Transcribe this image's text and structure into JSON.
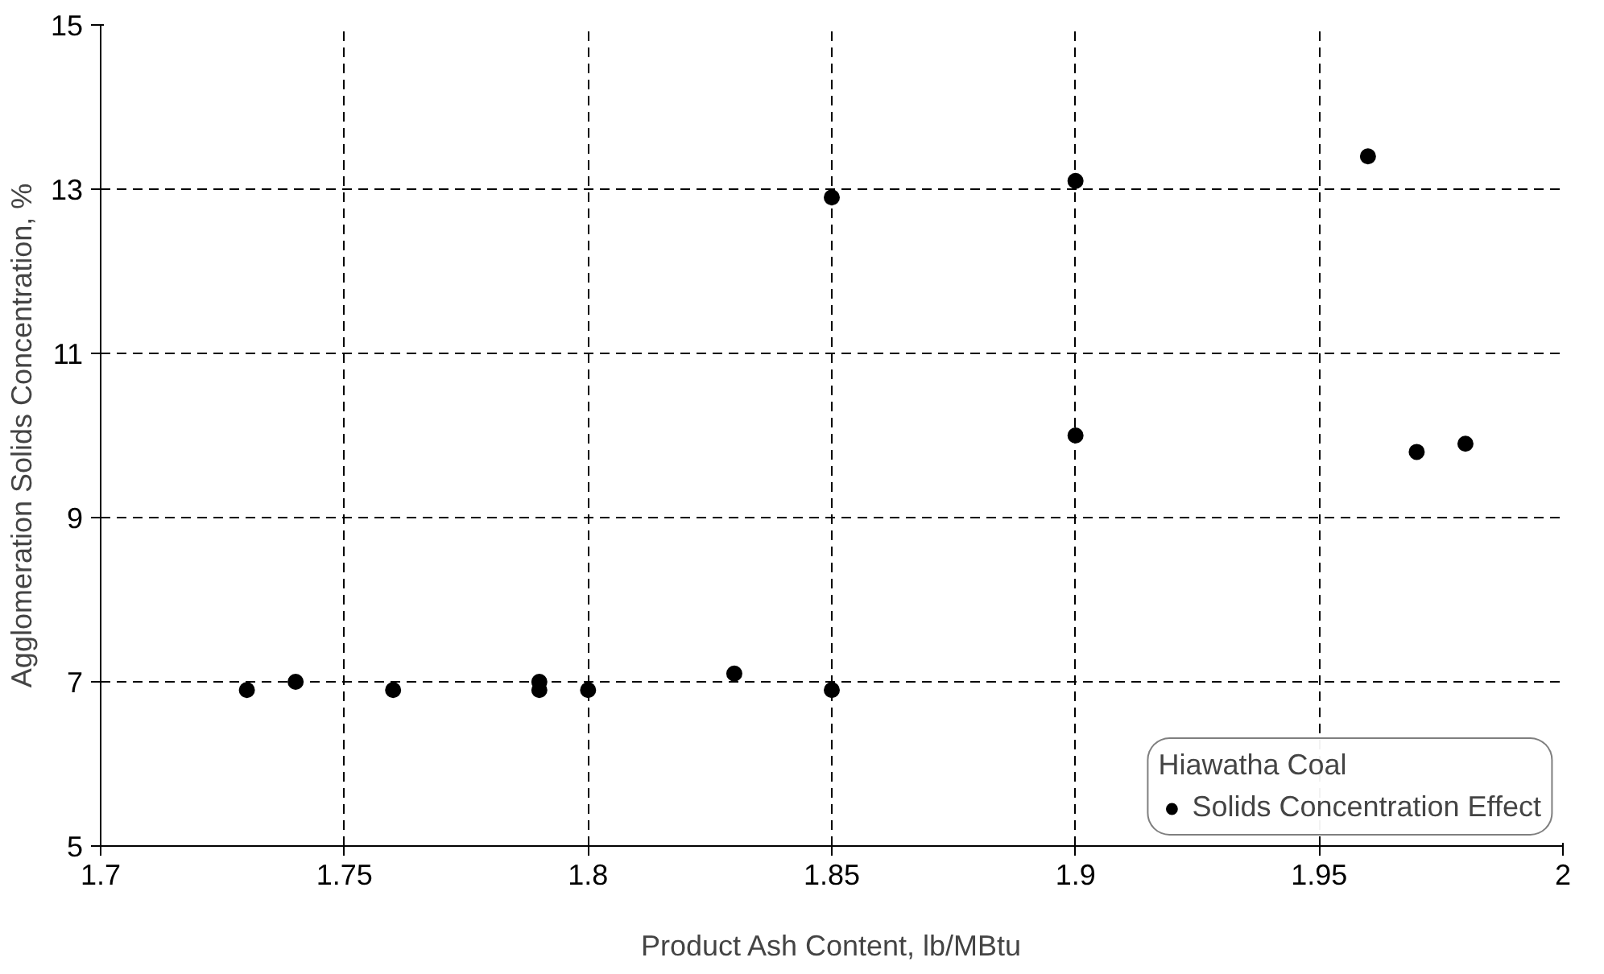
{
  "chart_data": {
    "type": "scatter",
    "xlabel": "Product Ash Content, lb/MBtu",
    "ylabel": "Agglomeration Solids Concentration, %",
    "legend_title": "Hiawatha Coal",
    "series": [
      {
        "name": "Solids Concentration Effect",
        "color": "#000000",
        "x": [
          1.73,
          1.74,
          1.76,
          1.79,
          1.79,
          1.8,
          1.83,
          1.85,
          1.85,
          1.9,
          1.9,
          1.96,
          1.97,
          1.98
        ],
        "values": [
          6.9,
          7.0,
          6.9,
          7.0,
          6.9,
          6.9,
          7.1,
          6.9,
          12.9,
          13.1,
          10.0,
          13.4,
          9.8,
          9.9
        ]
      }
    ],
    "xlim": [
      1.7,
      2
    ],
    "ylim": [
      5,
      15
    ],
    "xticks": [
      1.7,
      1.75,
      1.8,
      1.85,
      1.9,
      1.95,
      2
    ],
    "yticks": [
      5,
      7,
      9,
      11,
      13,
      15
    ],
    "grid": true,
    "legend": "bottom right",
    "marker": "circle"
  }
}
